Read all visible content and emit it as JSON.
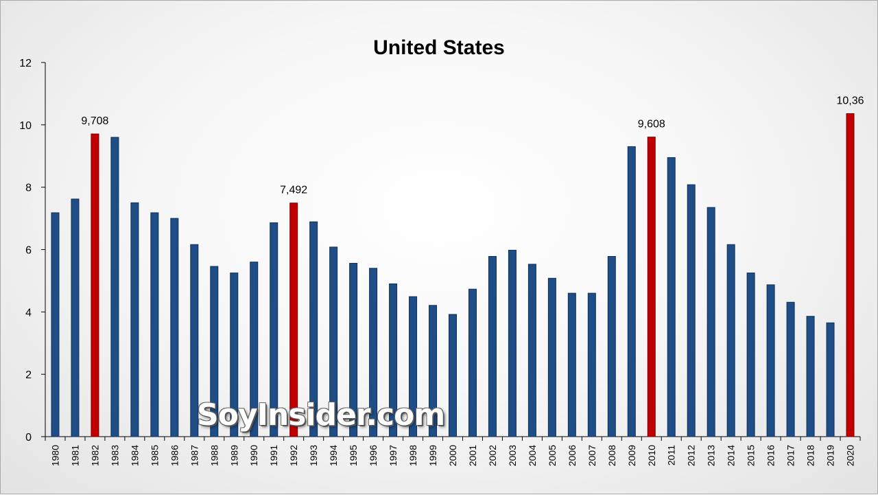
{
  "watermark": "SoyInsider.com",
  "colors": {
    "normal": "#1f4e87",
    "normal_edge": "#0f2f57",
    "highlight": "#c00000",
    "highlight_edge": "#7a0000"
  },
  "chart_data": {
    "type": "bar",
    "title": "United States",
    "xlabel": "",
    "ylabel": "",
    "ylim": [
      0,
      12
    ],
    "yticks": [
      0,
      2,
      4,
      6,
      8,
      10,
      12
    ],
    "grid": false,
    "legend": "none",
    "categories": [
      "1980",
      "1981",
      "1982",
      "1983",
      "1984",
      "1985",
      "1986",
      "1987",
      "1988",
      "1989",
      "1990",
      "1991",
      "1992",
      "1993",
      "1994",
      "1995",
      "1996",
      "1997",
      "1998",
      "1999",
      "2000",
      "2001",
      "2002",
      "2003",
      "2004",
      "2005",
      "2006",
      "2007",
      "2008",
      "2009",
      "2010",
      "2011",
      "2012",
      "2013",
      "2014",
      "2015",
      "2016",
      "2017",
      "2018",
      "2019",
      "2020"
    ],
    "values": [
      7.18,
      7.62,
      9.708,
      9.6,
      7.5,
      7.18,
      7.0,
      6.16,
      5.46,
      5.25,
      5.6,
      6.86,
      7.492,
      6.89,
      6.08,
      5.56,
      5.4,
      4.9,
      4.49,
      4.21,
      3.92,
      4.73,
      5.78,
      5.98,
      5.53,
      5.08,
      4.6,
      4.6,
      5.78,
      9.3,
      9.608,
      8.95,
      8.08,
      7.35,
      6.16,
      5.25,
      4.87,
      4.31,
      3.86,
      3.65,
      10.36
    ],
    "highlighted": [
      "1982",
      "1992",
      "2010",
      "2020"
    ],
    "data_labels": [
      {
        "category": "1982",
        "text": "9,708"
      },
      {
        "category": "1992",
        "text": "7,492"
      },
      {
        "category": "2010",
        "text": "9,608"
      },
      {
        "category": "2020",
        "text": "10,36"
      }
    ]
  }
}
